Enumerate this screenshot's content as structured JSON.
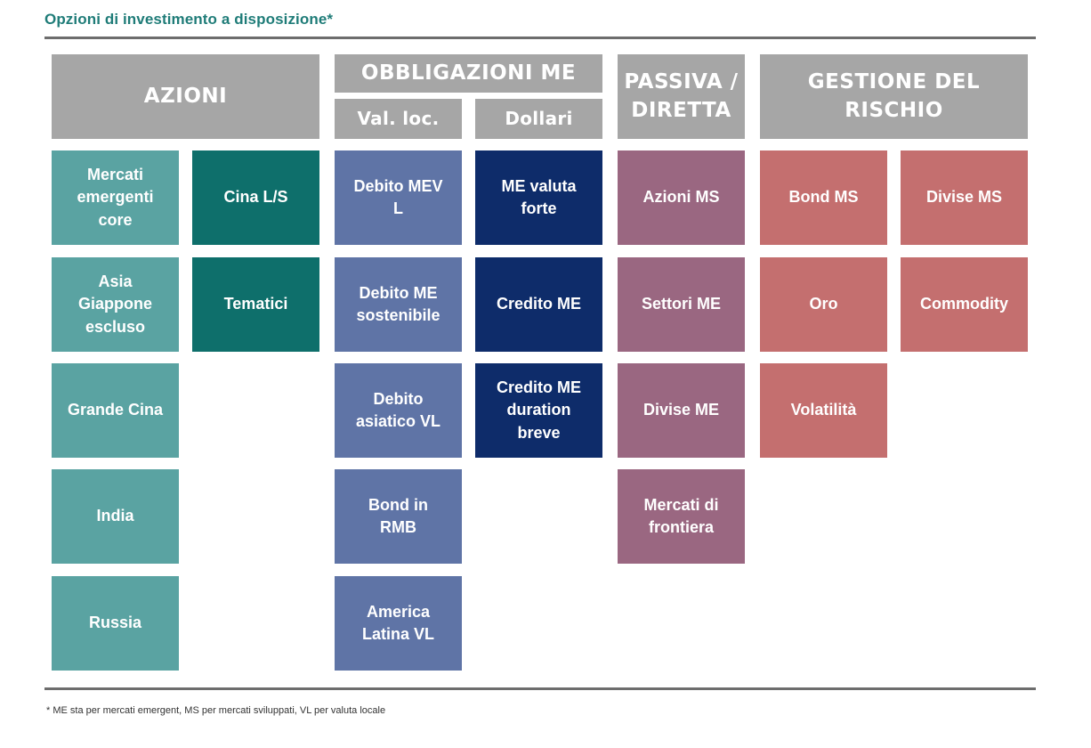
{
  "title": "Opzioni di investimento a disposizione*",
  "footnote": "* ME sta per mercati emergent, MS per mercati sviluppati, VL per valuta locale",
  "colors": {
    "header": "#a6a6a6",
    "azioni_light": "#5aa3a2",
    "azioni_dark": "#0e6f6b",
    "obbligazioni_val_loc": "#5f74a6",
    "obbligazioni_dollari": "#0e2c6a",
    "passiva": "#9a6781",
    "rischio": "#c46f6f"
  },
  "headers": {
    "azioni": "AZIONI",
    "obbligazioni": "OBBLIGAZIONI ME",
    "val_loc": "Val. loc.",
    "dollari": "Dollari",
    "passiva": "PASSIVA /\nDIRETTA",
    "rischio": "GESTIONE DEL RISCHIO"
  },
  "azioni": {
    "col1": [
      "Mercati\nemergenti\ncore",
      "Asia\nGiappone\nescluso",
      "Grande Cina",
      "India",
      "Russia"
    ],
    "col2": [
      "Cina L/S",
      "Tematici"
    ]
  },
  "obbligazioni": {
    "val_loc": [
      "Debito MEV\nL",
      "Debito ME\nsostenibile",
      "Debito\nasiatico VL",
      "Bond in\nRMB",
      "America\nLatina VL"
    ],
    "dollari": [
      "ME valuta\nforte",
      "Credito ME",
      "Credito ME\nduration\nbreve"
    ]
  },
  "passiva": [
    "Azioni MS",
    "Settori ME",
    "Divise ME",
    "Mercati di\nfrontiera"
  ],
  "rischio": {
    "col1": [
      "Bond MS",
      "Oro",
      "Volatilità"
    ],
    "col2": [
      "Divise MS",
      "Commodity"
    ]
  }
}
